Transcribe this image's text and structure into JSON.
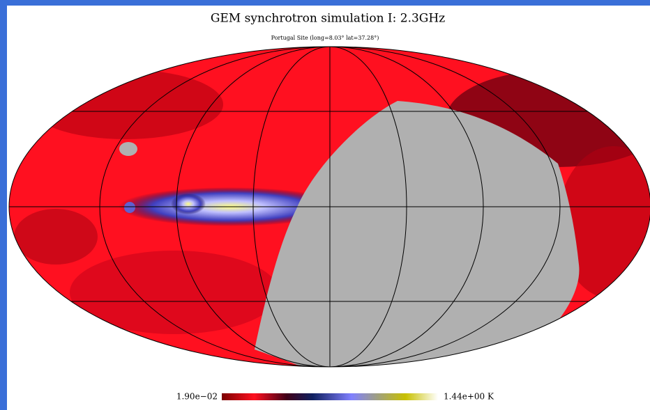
{
  "title": "GEM synchrotron simulation I: 2.3GHz",
  "subtitle": "Portugal Site (long=8.03° lat=37.28°)",
  "colorbar": {
    "min_label": "1.90e−02",
    "max_label": "1.44e+00 K"
  }
}
